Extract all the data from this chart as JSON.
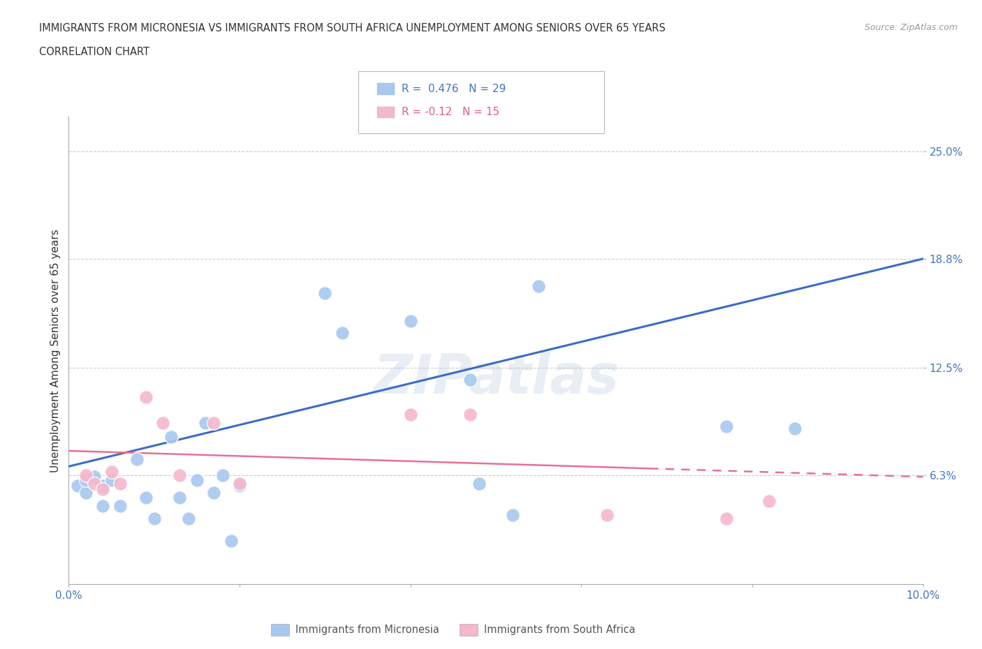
{
  "title_line1": "IMMIGRANTS FROM MICRONESIA VS IMMIGRANTS FROM SOUTH AFRICA UNEMPLOYMENT AMONG SENIORS OVER 65 YEARS",
  "title_line2": "CORRELATION CHART",
  "source": "Source: ZipAtlas.com",
  "ylabel": "Unemployment Among Seniors over 65 years",
  "xlim": [
    0.0,
    0.1
  ],
  "ylim": [
    0.0,
    0.27
  ],
  "ytick_positions": [
    0.063,
    0.125,
    0.188,
    0.25
  ],
  "ytick_labels": [
    "6.3%",
    "12.5%",
    "18.8%",
    "25.0%"
  ],
  "R_micro": 0.476,
  "N_micro": 29,
  "R_sa": -0.12,
  "N_sa": 15,
  "color_micro": "#A8C8F0",
  "color_sa": "#F4B8CC",
  "line_color_micro": "#3A6CC8",
  "line_color_sa": "#E87090",
  "background_color": "#FFFFFF",
  "watermark": "ZIPatlas",
  "micro_x": [
    0.001,
    0.002,
    0.002,
    0.003,
    0.004,
    0.004,
    0.005,
    0.006,
    0.008,
    0.009,
    0.01,
    0.012,
    0.013,
    0.014,
    0.015,
    0.016,
    0.017,
    0.018,
    0.019,
    0.02,
    0.03,
    0.032,
    0.04,
    0.047,
    0.048,
    0.052,
    0.055,
    0.077,
    0.085
  ],
  "micro_y": [
    0.057,
    0.053,
    0.06,
    0.062,
    0.045,
    0.057,
    0.06,
    0.045,
    0.072,
    0.05,
    0.038,
    0.085,
    0.05,
    0.038,
    0.06,
    0.093,
    0.053,
    0.063,
    0.025,
    0.057,
    0.168,
    0.145,
    0.152,
    0.118,
    0.058,
    0.04,
    0.172,
    0.091,
    0.09
  ],
  "sa_x": [
    0.002,
    0.003,
    0.004,
    0.005,
    0.006,
    0.009,
    0.011,
    0.013,
    0.017,
    0.02,
    0.04,
    0.047,
    0.063,
    0.077,
    0.082
  ],
  "sa_y": [
    0.063,
    0.058,
    0.055,
    0.065,
    0.058,
    0.108,
    0.093,
    0.063,
    0.093,
    0.058,
    0.098,
    0.098,
    0.04,
    0.038,
    0.048
  ],
  "blue_line_x": [
    0.0,
    0.1
  ],
  "blue_line_y": [
    0.068,
    0.188
  ],
  "pink_line_x": [
    0.0,
    0.1
  ],
  "pink_line_y": [
    0.077,
    0.062
  ]
}
